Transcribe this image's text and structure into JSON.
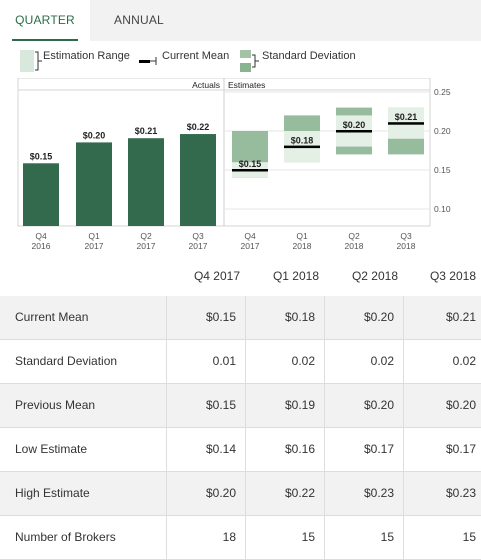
{
  "tabs": {
    "quarter": "QUARTER",
    "annual": "ANNUAL"
  },
  "legend": {
    "range": "Estimation Range",
    "mean": "Current Mean",
    "sd": "Standard Deviation"
  },
  "colors": {
    "actual": "#336a4e",
    "range": "#97bb9d",
    "sd_band": "#e4efe5",
    "mean": "#000000",
    "accent": "#2c6b47"
  },
  "chart_data": {
    "type": "bar",
    "section_labels": {
      "actuals": "Actuals",
      "estimates": "Estimates"
    },
    "ylim": [
      0,
      0.25
    ],
    "y_ticks_right": [
      "0.25",
      "0.20",
      "0.15",
      "0.10"
    ],
    "actuals": [
      {
        "q": "Q4",
        "y": "2016",
        "value": 0.15,
        "label": "$0.15"
      },
      {
        "q": "Q1",
        "y": "2017",
        "value": 0.2,
        "label": "$0.20"
      },
      {
        "q": "Q2",
        "y": "2017",
        "value": 0.21,
        "label": "$0.21"
      },
      {
        "q": "Q3",
        "y": "2017",
        "value": 0.22,
        "label": "$0.22"
      }
    ],
    "estimates": [
      {
        "q": "Q4",
        "y": "2017",
        "low": 0.14,
        "high": 0.2,
        "mean": 0.15,
        "sd": 0.01,
        "label": "$0.15"
      },
      {
        "q": "Q1",
        "y": "2018",
        "low": 0.16,
        "high": 0.22,
        "mean": 0.18,
        "sd": 0.02,
        "label": "$0.18"
      },
      {
        "q": "Q2",
        "y": "2018",
        "low": 0.17,
        "high": 0.23,
        "mean": 0.2,
        "sd": 0.02,
        "label": "$0.20"
      },
      {
        "q": "Q3",
        "y": "2018",
        "low": 0.17,
        "high": 0.23,
        "mean": 0.21,
        "sd": 0.02,
        "label": "$0.21"
      }
    ]
  },
  "table": {
    "columns": [
      "Q4 2017",
      "Q1 2018",
      "Q2 2018",
      "Q3 2018"
    ],
    "rows": [
      {
        "label": "Current Mean",
        "values": [
          "$0.15",
          "$0.18",
          "$0.20",
          "$0.21"
        ]
      },
      {
        "label": "Standard Deviation",
        "values": [
          "0.01",
          "0.02",
          "0.02",
          "0.02"
        ]
      },
      {
        "label": "Previous Mean",
        "values": [
          "$0.15",
          "$0.19",
          "$0.20",
          "$0.20"
        ]
      },
      {
        "label": "Low Estimate",
        "values": [
          "$0.14",
          "$0.16",
          "$0.17",
          "$0.17"
        ]
      },
      {
        "label": "High Estimate",
        "values": [
          "$0.20",
          "$0.22",
          "$0.23",
          "$0.23"
        ]
      },
      {
        "label": "Number of Brokers",
        "values": [
          "18",
          "15",
          "15",
          "15"
        ]
      }
    ]
  }
}
